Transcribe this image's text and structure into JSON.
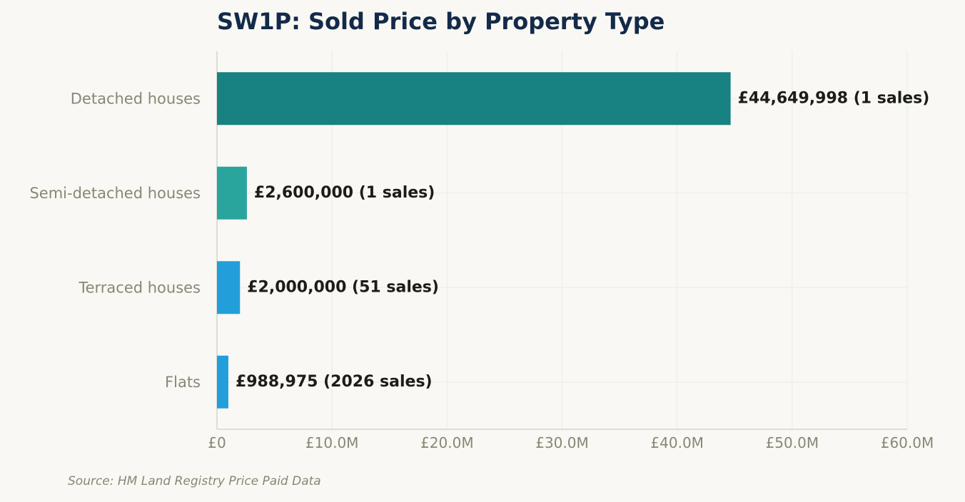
{
  "chart_data": {
    "type": "bar",
    "orientation": "horizontal",
    "title": "SW1P: Sold Price by Property Type",
    "xlabel": "",
    "ylabel": "",
    "xlim": [
      0,
      60000000
    ],
    "grid": true,
    "categories": [
      "Detached houses",
      "Semi-detached houses",
      "Terraced houses",
      "Flats"
    ],
    "values": [
      44649998,
      2600000,
      2000000,
      988975
    ],
    "sales": [
      1,
      1,
      51,
      2026
    ],
    "data_labels": [
      "£44,649,998  (1 sales)",
      "£2,600,000  (1 sales)",
      "£2,000,000  (51 sales)",
      "£988,975  (2026 sales)"
    ],
    "bar_colors": [
      "#188181",
      "#29a59e",
      "#229fda",
      "#229fda"
    ],
    "x_ticks": [
      0,
      10000000,
      20000000,
      30000000,
      40000000,
      50000000,
      60000000
    ],
    "x_tick_labels": [
      "£0",
      "£10.0M",
      "£20.0M",
      "£30.0M",
      "£40.0M",
      "£50.0M",
      "£60.0M"
    ]
  },
  "source": "Source: HM Land Registry Price Paid Data",
  "colors": {
    "title": "#132a4a",
    "muted_text": "#8a8675",
    "value_text": "#1c1c18",
    "grid": "#ecebe5",
    "axis": "#d6d4cc",
    "background": "#f9f8f4"
  }
}
